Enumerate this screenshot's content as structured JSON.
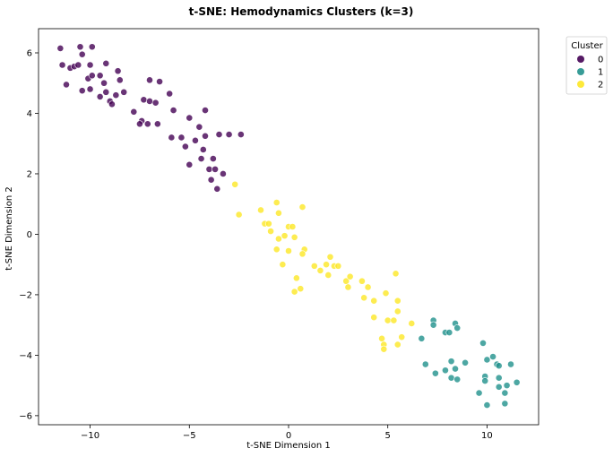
{
  "chart_data": {
    "type": "scatter",
    "title": "t-SNE: Hemodynamics Clusters (k=3)",
    "xlabel": "t-SNE Dimension 1",
    "ylabel": "t-SNE Dimension 2",
    "xlim": [
      -12.6,
      12.6
    ],
    "ylim": [
      -6.3,
      6.8
    ],
    "xticks": [
      -10,
      -5,
      0,
      5,
      10
    ],
    "yticks": [
      -6,
      -4,
      -2,
      0,
      2,
      4,
      6
    ],
    "xtick_labels": [
      "−10",
      "−5",
      "0",
      "5",
      "10"
    ],
    "ytick_labels": [
      "−6",
      "−4",
      "−2",
      "0",
      "2",
      "4",
      "6"
    ],
    "grid": false,
    "legend": {
      "title": "Cluster",
      "placement": "outside-top-right"
    },
    "series": [
      {
        "name": "0",
        "color": "#440154",
        "points": [
          [
            -11.5,
            6.15
          ],
          [
            -10.5,
            6.2
          ],
          [
            -9.9,
            6.2
          ],
          [
            -11.4,
            5.6
          ],
          [
            -11.0,
            5.5
          ],
          [
            -10.8,
            5.55
          ],
          [
            -10.6,
            5.6
          ],
          [
            -10.4,
            5.95
          ],
          [
            -10.0,
            5.6
          ],
          [
            -10.1,
            5.15
          ],
          [
            -9.9,
            5.25
          ],
          [
            -9.5,
            5.25
          ],
          [
            -9.3,
            5.0
          ],
          [
            -9.2,
            5.65
          ],
          [
            -8.6,
            5.4
          ],
          [
            -8.5,
            5.1
          ],
          [
            -11.2,
            4.95
          ],
          [
            -10.4,
            4.75
          ],
          [
            -10.0,
            4.8
          ],
          [
            -9.5,
            4.55
          ],
          [
            -9.2,
            4.7
          ],
          [
            -9.0,
            4.4
          ],
          [
            -8.9,
            4.3
          ],
          [
            -8.7,
            4.6
          ],
          [
            -8.3,
            4.7
          ],
          [
            -7.0,
            5.1
          ],
          [
            -6.5,
            5.05
          ],
          [
            -7.3,
            4.45
          ],
          [
            -7.0,
            4.4
          ],
          [
            -6.7,
            4.35
          ],
          [
            -6.0,
            4.65
          ],
          [
            -7.8,
            4.05
          ],
          [
            -7.4,
            3.75
          ],
          [
            -7.5,
            3.65
          ],
          [
            -7.1,
            3.65
          ],
          [
            -6.6,
            3.65
          ],
          [
            -5.8,
            4.1
          ],
          [
            -5.0,
            3.85
          ],
          [
            -4.2,
            4.1
          ],
          [
            -4.5,
            3.55
          ],
          [
            -4.2,
            3.25
          ],
          [
            -3.5,
            3.3
          ],
          [
            -3.0,
            3.3
          ],
          [
            -2.4,
            3.3
          ],
          [
            -5.9,
            3.2
          ],
          [
            -5.4,
            3.2
          ],
          [
            -5.2,
            2.9
          ],
          [
            -4.7,
            3.1
          ],
          [
            -4.3,
            2.8
          ],
          [
            -4.4,
            2.5
          ],
          [
            -3.8,
            2.5
          ],
          [
            -4.0,
            2.15
          ],
          [
            -3.7,
            2.15
          ],
          [
            -3.3,
            2.0
          ],
          [
            -3.9,
            1.8
          ],
          [
            -3.6,
            1.5
          ],
          [
            -5.0,
            2.3
          ]
        ]
      },
      {
        "name": "1",
        "color": "#21918c",
        "points": [
          [
            7.3,
            -2.85
          ],
          [
            7.3,
            -3.0
          ],
          [
            7.9,
            -3.25
          ],
          [
            8.1,
            -3.25
          ],
          [
            8.4,
            -2.95
          ],
          [
            8.5,
            -3.1
          ],
          [
            6.7,
            -3.45
          ],
          [
            9.8,
            -3.6
          ],
          [
            8.2,
            -4.2
          ],
          [
            8.9,
            -4.25
          ],
          [
            6.9,
            -4.3
          ],
          [
            7.4,
            -4.6
          ],
          [
            7.9,
            -4.5
          ],
          [
            8.2,
            -4.75
          ],
          [
            8.4,
            -4.45
          ],
          [
            8.5,
            -4.8
          ],
          [
            10.0,
            -4.15
          ],
          [
            10.3,
            -4.05
          ],
          [
            10.5,
            -4.3
          ],
          [
            10.6,
            -4.35
          ],
          [
            11.2,
            -4.3
          ],
          [
            9.9,
            -4.7
          ],
          [
            10.6,
            -4.75
          ],
          [
            11.0,
            -5.0
          ],
          [
            11.5,
            -4.9
          ],
          [
            9.9,
            -4.85
          ],
          [
            10.6,
            -5.05
          ],
          [
            9.6,
            -5.25
          ],
          [
            10.9,
            -5.25
          ],
          [
            10.0,
            -5.65
          ],
          [
            10.9,
            -5.6
          ]
        ]
      },
      {
        "name": "2",
        "color": "#fde725",
        "points": [
          [
            -2.7,
            1.65
          ],
          [
            -2.5,
            0.65
          ],
          [
            -1.4,
            0.8
          ],
          [
            -1.2,
            0.35
          ],
          [
            -1.0,
            0.35
          ],
          [
            -0.9,
            0.1
          ],
          [
            -0.6,
            1.05
          ],
          [
            -0.5,
            0.7
          ],
          [
            0.7,
            0.9
          ],
          [
            -0.5,
            -0.15
          ],
          [
            -0.2,
            -0.05
          ],
          [
            0.0,
            0.25
          ],
          [
            0.2,
            0.25
          ],
          [
            0.3,
            -0.1
          ],
          [
            -0.6,
            -0.5
          ],
          [
            0.0,
            -0.55
          ],
          [
            0.8,
            -0.5
          ],
          [
            0.7,
            -0.65
          ],
          [
            -0.3,
            -1.0
          ],
          [
            0.4,
            -1.45
          ],
          [
            0.6,
            -1.8
          ],
          [
            0.3,
            -1.9
          ],
          [
            1.3,
            -1.05
          ],
          [
            1.6,
            -1.2
          ],
          [
            1.9,
            -1.0
          ],
          [
            2.1,
            -0.75
          ],
          [
            2.3,
            -1.05
          ],
          [
            2.5,
            -1.05
          ],
          [
            2.0,
            -1.35
          ],
          [
            2.9,
            -1.55
          ],
          [
            3.0,
            -1.75
          ],
          [
            3.1,
            -1.4
          ],
          [
            3.7,
            -1.55
          ],
          [
            4.0,
            -1.75
          ],
          [
            3.8,
            -2.1
          ],
          [
            4.3,
            -2.2
          ],
          [
            4.3,
            -2.75
          ],
          [
            4.9,
            -1.95
          ],
          [
            5.0,
            -2.85
          ],
          [
            5.3,
            -2.85
          ],
          [
            5.4,
            -1.3
          ],
          [
            5.5,
            -2.2
          ],
          [
            5.5,
            -2.55
          ],
          [
            6.2,
            -2.95
          ],
          [
            4.7,
            -3.45
          ],
          [
            4.8,
            -3.65
          ],
          [
            4.8,
            -3.8
          ],
          [
            5.5,
            -3.65
          ],
          [
            5.7,
            -3.4
          ]
        ]
      }
    ]
  }
}
